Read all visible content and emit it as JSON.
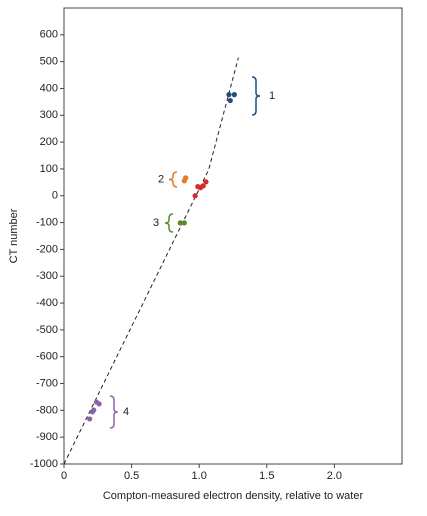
{
  "chart_data": {
    "type": "scatter",
    "xlabel": "Compton-measured electron density, relative to water",
    "ylabel": "CT number",
    "xlim": [
      0,
      2.5
    ],
    "ylim": [
      -1000,
      700
    ],
    "xticks": [
      0,
      0.5,
      {
        "value": 1,
        "label": "1.0"
      },
      1.5,
      {
        "value": 2,
        "label": "2.0"
      }
    ],
    "yticks": [
      -1000,
      -900,
      -800,
      -700,
      -600,
      -500,
      -400,
      -300,
      -200,
      -100,
      0,
      100,
      200,
      300,
      400,
      500,
      600
    ],
    "fit_line": {
      "x": [
        0,
        1.07,
        1.29
      ],
      "values": [
        -1000,
        97,
        515
      ],
      "color": "#222222",
      "dashed": true
    },
    "series": [
      {
        "color": "#1f4e79",
        "x": [
          1.22,
          1.23,
          1.26
        ],
        "values": [
          377,
          355,
          377
        ]
      },
      {
        "color": "#e07b2a",
        "x": [
          0.89,
          0.9
        ],
        "values": [
          56,
          67
        ]
      },
      {
        "color": "#d62a2a",
        "x": [
          0.97,
          0.99,
          1.01,
          1.03,
          1.05
        ],
        "values": [
          0,
          34,
          30,
          37,
          52
        ]
      },
      {
        "color": "#5a8a2e",
        "x": [
          0.86,
          0.89
        ],
        "values": [
          -101,
          -101
        ]
      },
      {
        "color": "#8a63a8",
        "x": [
          0.24,
          0.26,
          0.22,
          0.21,
          0.19
        ],
        "values": [
          -769,
          -776,
          -799,
          -806,
          -832
        ]
      }
    ],
    "annotations": [
      "1",
      "2",
      "3",
      "4"
    ]
  }
}
